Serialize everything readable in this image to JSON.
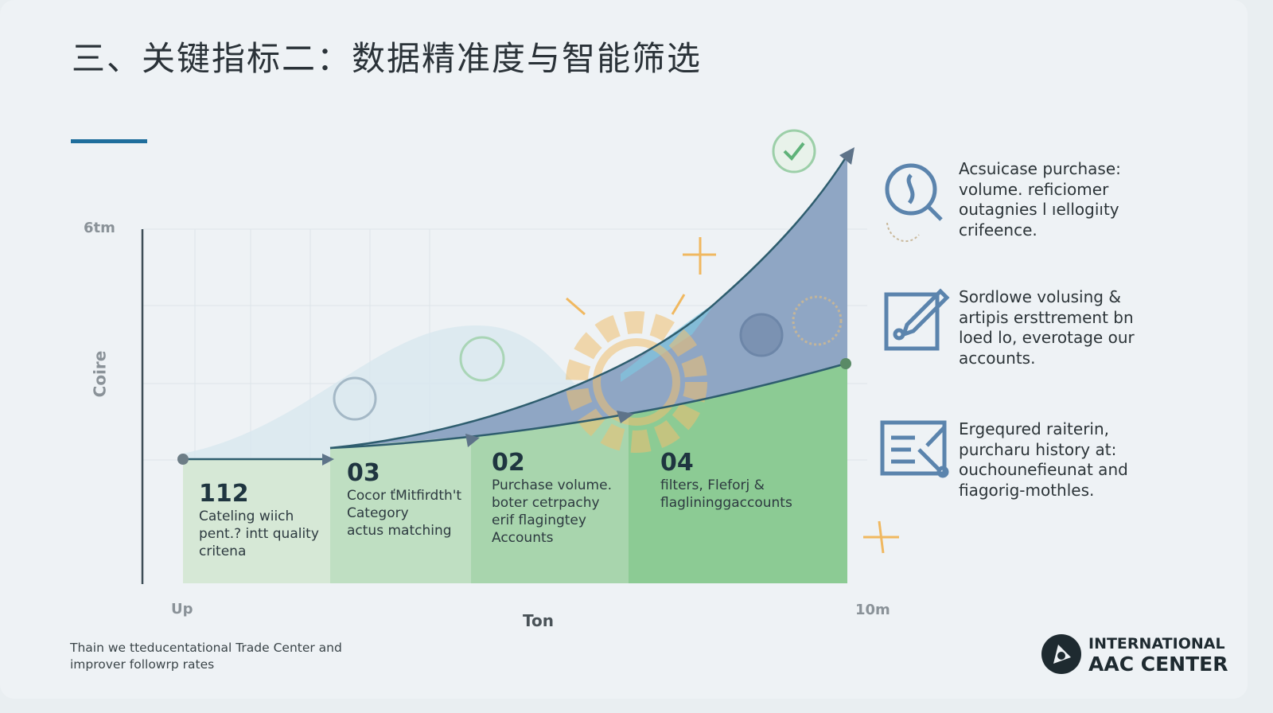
{
  "title": "三、关键指标二：数据精准度与智能筛选",
  "axes": {
    "y_top_label": "6tm",
    "y_label": "Coire",
    "x_left_label": "Up",
    "x_center_label": "Ton",
    "x_right_label": "10m"
  },
  "steps": [
    {
      "num": "112",
      "lines": [
        "Cateling wiich",
        "pent.? intt quality",
        "critena"
      ]
    },
    {
      "num": "03",
      "lines": [
        "Cocor ťMitfirdth't",
        "Category",
        "actus matching"
      ]
    },
    {
      "num": "02",
      "lines": [
        "Purchase volume.",
        "boter cetrpachy",
        "erif flagingtey",
        "Accounts"
      ]
    },
    {
      "num": "04",
      "lines": [
        "filters, Fleforj &",
        "flaglininggaccounts"
      ]
    }
  ],
  "features": [
    {
      "icon": "magnifier-gear-icon",
      "text": "Acsuicase purchase: volume. reficiomer outagnies l ıellogiıty crifeence."
    },
    {
      "icon": "checklist-pencil-icon",
      "text": "Sordlowe volusing & artipis ersttrement bn loed lo, everotage our accounts."
    },
    {
      "icon": "document-filter-icon",
      "text": "Ergequred raiterin, purcharu history at: ouchounefieunat and fiagorig-mothles."
    }
  ],
  "footer": {
    "line1": "Thain we tteducentational Trade Center and",
    "line2": "improver followrp rates"
  },
  "logo": {
    "line1": "INTERNATIONAL",
    "line2": "AAC CENTER"
  },
  "colors": {
    "accent": "#1f6e9c",
    "green": "#8ccb94",
    "blue_area": "#8fa6c4",
    "icon_blue": "#5b84ad",
    "orange": "#f0b860"
  }
}
